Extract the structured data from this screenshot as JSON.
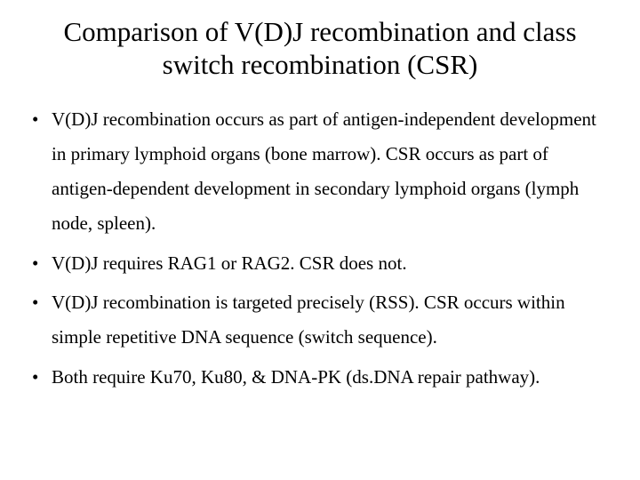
{
  "slide": {
    "title": "Comparison of V(D)J recombination and class switch recombination (CSR)",
    "bullets": [
      "V(D)J recombination occurs as part of antigen-independent development in primary lymphoid organs (bone marrow).  CSR occurs as part of antigen-dependent development in secondary lymphoid organs (lymph node, spleen).",
      "V(D)J requires RAG1 or RAG2.  CSR does not.",
      "V(D)J recombination is targeted precisely (RSS).  CSR occurs within simple repetitive DNA sequence (switch sequence).",
      "Both require Ku70, Ku80, & DNA-PK (ds.DNA repair pathway)."
    ],
    "colors": {
      "background": "#ffffff",
      "text": "#000000"
    },
    "typography": {
      "title_fontsize_pt": 31,
      "body_fontsize_pt": 21,
      "font_family": "Times New Roman"
    }
  }
}
